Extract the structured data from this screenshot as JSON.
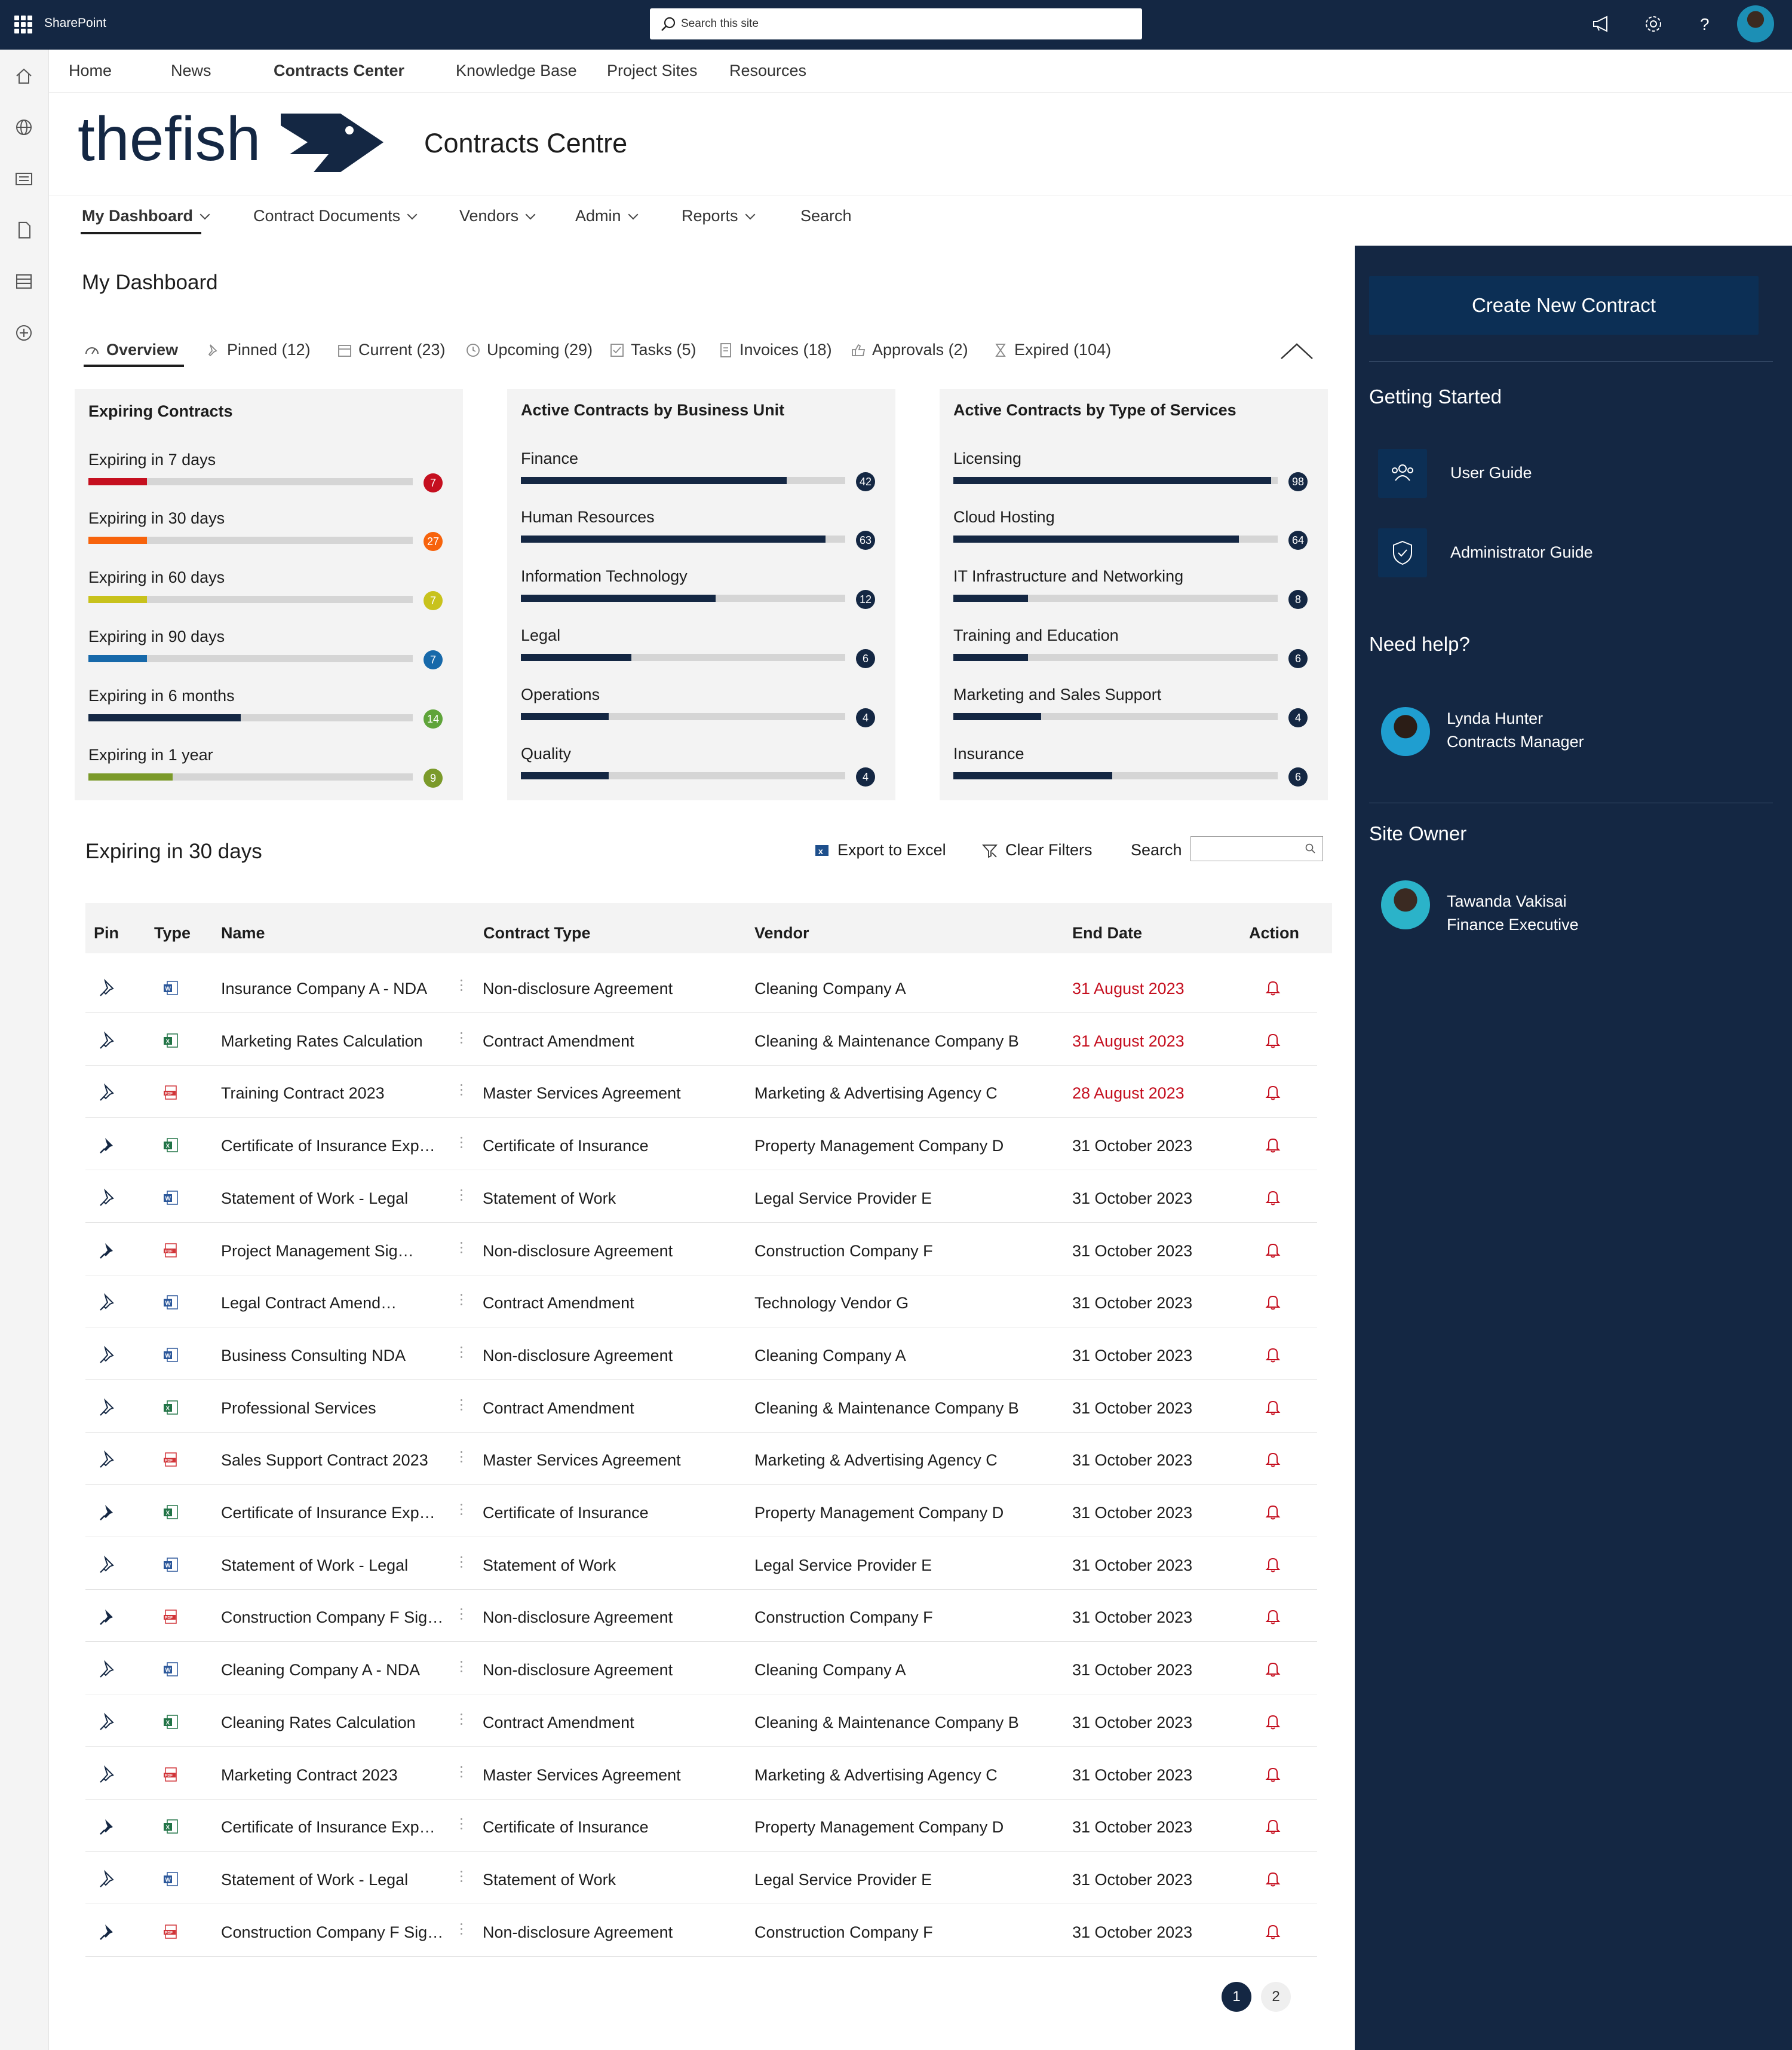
{
  "suite_bar": {
    "app_label": "SharePoint",
    "search_placeholder": "Search this site"
  },
  "site_nav": [
    "Home",
    "News",
    "Contracts Center",
    "Knowledge Base",
    "Project Sites",
    "Resources"
  ],
  "brand": {
    "logo_text": "thefish",
    "site_title": "Contracts Centre"
  },
  "sub_nav": [
    "My Dashboard",
    "Contract Documents",
    "Vendors",
    "Admin",
    "Reports",
    "Search"
  ],
  "dashboard": {
    "title": "My Dashboard",
    "tabs": [
      "Overview",
      "Pinned (12)",
      "Current (23)",
      "Upcoming (29)",
      "Tasks (5)",
      "Invoices (18)",
      "Approvals (2)",
      "Expired (104)"
    ]
  },
  "cards": [
    {
      "title": "Expiring Contracts",
      "rows": [
        {
          "label": "Expiring in 7 days",
          "value": "7",
          "fill": 0.18,
          "color": "#c50f1f"
        },
        {
          "label": "Expiring in 30 days",
          "value": "27",
          "fill": 0.18,
          "color": "#f7630c"
        },
        {
          "label": "Expiring in 60 days",
          "value": "7",
          "fill": 0.18,
          "color": "#c8c21c"
        },
        {
          "label": "Expiring in 90 days",
          "value": "7",
          "fill": 0.18,
          "color": "#1769aa"
        },
        {
          "label": "Expiring in 6 months",
          "value": "14",
          "fill": 0.47,
          "color": "#142743",
          "badge_color": "#5fa43a"
        },
        {
          "label": "Expiring in 1 year",
          "value": "9",
          "fill": 0.26,
          "color": "#7b9a2a"
        }
      ],
      "badge_colors": [
        "#c50f1f",
        "#f7630c",
        "#c8c21c",
        "#1769aa",
        "#5fa43a",
        "#7b9a2a"
      ]
    },
    {
      "title": "Active Contracts by Business Unit",
      "rows": [
        {
          "label": "Finance",
          "value": "42",
          "fill": 0.82,
          "color": "#142743"
        },
        {
          "label": "Human Resources",
          "value": "63",
          "fill": 0.94,
          "color": "#142743"
        },
        {
          "label": "Information Technology",
          "value": "12",
          "fill": 0.6,
          "color": "#142743"
        },
        {
          "label": "Legal",
          "value": "6",
          "fill": 0.34,
          "color": "#142743"
        },
        {
          "label": "Operations",
          "value": "4",
          "fill": 0.27,
          "color": "#142743"
        },
        {
          "label": "Quality",
          "value": "4",
          "fill": 0.27,
          "color": "#142743"
        }
      ]
    },
    {
      "title": "Active Contracts by Type of Services",
      "rows": [
        {
          "label": "Licensing",
          "value": "98",
          "fill": 0.98,
          "color": "#142743"
        },
        {
          "label": "Cloud Hosting",
          "value": "64",
          "fill": 0.88,
          "color": "#142743"
        },
        {
          "label": "IT Infrastructure and Networking",
          "value": "8",
          "fill": 0.23,
          "color": "#142743"
        },
        {
          "label": "Training and Education",
          "value": "6",
          "fill": 0.23,
          "color": "#142743"
        },
        {
          "label": "Marketing and Sales Support",
          "value": "4",
          "fill": 0.27,
          "color": "#142743"
        },
        {
          "label": "Insurance",
          "value": "6",
          "fill": 0.49,
          "color": "#142743"
        }
      ]
    }
  ],
  "table": {
    "title": "Expiring in 30 days",
    "export_label": "Export to Excel",
    "clear_label": "Clear Filters",
    "search_label": "Search",
    "headers": [
      "Pin",
      "Type",
      "Name",
      "Contract Type",
      "Vendor",
      "End Date",
      "Action"
    ],
    "rows": [
      {
        "pinned": false,
        "type": "word",
        "name": "Insurance Company A - NDA",
        "contract_type": "Non-disclosure Agreement",
        "vendor": "Cleaning Company A",
        "end_date": "31 August 2023",
        "urgent": true
      },
      {
        "pinned": false,
        "type": "excel",
        "name": "Marketing Rates Calculation",
        "contract_type": "Contract Amendment",
        "vendor": "Cleaning & Maintenance Company B",
        "end_date": "31 August 2023",
        "urgent": true
      },
      {
        "pinned": false,
        "type": "pdf",
        "name": "Training Contract 2023",
        "contract_type": "Master Services Agreement",
        "vendor": "Marketing & Advertising Agency C",
        "end_date": "28 August 2023",
        "urgent": true
      },
      {
        "pinned": true,
        "type": "excel",
        "name": "Certificate of Insurance Exp…",
        "contract_type": "Certificate of Insurance",
        "vendor": "Property Management Company D",
        "end_date": "31 October 2023",
        "urgent": false
      },
      {
        "pinned": false,
        "type": "word",
        "name": "Statement of Work - Legal",
        "contract_type": "Statement of Work",
        "vendor": "Legal Service Provider E",
        "end_date": "31 October 2023",
        "urgent": false
      },
      {
        "pinned": true,
        "type": "pdf",
        "name": "Project Management Sig…",
        "contract_type": "Non-disclosure Agreement",
        "vendor": "Construction Company F",
        "end_date": "31 October 2023",
        "urgent": false
      },
      {
        "pinned": false,
        "type": "word",
        "name": "Legal Contract Amend…",
        "contract_type": "Contract Amendment",
        "vendor": "Technology Vendor G",
        "end_date": "31 October 2023",
        "urgent": false
      },
      {
        "pinned": false,
        "type": "word",
        "name": "Business Consulting NDA",
        "contract_type": "Non-disclosure Agreement",
        "vendor": "Cleaning Company A",
        "end_date": "31 October 2023",
        "urgent": false
      },
      {
        "pinned": false,
        "type": "excel",
        "name": "Professional Services",
        "contract_type": "Contract Amendment",
        "vendor": "Cleaning & Maintenance Company B",
        "end_date": "31 October 2023",
        "urgent": false
      },
      {
        "pinned": false,
        "type": "pdf",
        "name": "Sales Support Contract 2023",
        "contract_type": "Master Services Agreement",
        "vendor": "Marketing & Advertising Agency C",
        "end_date": "31 October 2023",
        "urgent": false
      },
      {
        "pinned": true,
        "type": "excel",
        "name": "Certificate of Insurance Exp…",
        "contract_type": "Certificate of Insurance",
        "vendor": "Property Management Company D",
        "end_date": "31 October 2023",
        "urgent": false
      },
      {
        "pinned": false,
        "type": "word",
        "name": "Statement of Work - Legal",
        "contract_type": "Statement of Work",
        "vendor": "Legal Service Provider E",
        "end_date": "31 October 2023",
        "urgent": false
      },
      {
        "pinned": true,
        "type": "pdf",
        "name": "Construction Company F Sig…",
        "contract_type": "Non-disclosure Agreement",
        "vendor": "Construction Company F",
        "end_date": "31 October 2023",
        "urgent": false
      },
      {
        "pinned": false,
        "type": "word",
        "name": "Cleaning Company A - NDA",
        "contract_type": "Non-disclosure Agreement",
        "vendor": "Cleaning Company A",
        "end_date": "31 October 2023",
        "urgent": false
      },
      {
        "pinned": false,
        "type": "excel",
        "name": "Cleaning Rates Calculation",
        "contract_type": "Contract Amendment",
        "vendor": "Cleaning & Maintenance Company B",
        "end_date": "31 October 2023",
        "urgent": false
      },
      {
        "pinned": false,
        "type": "pdf",
        "name": "Marketing Contract 2023",
        "contract_type": "Master Services Agreement",
        "vendor": "Marketing & Advertising Agency C",
        "end_date": "31 October 2023",
        "urgent": false
      },
      {
        "pinned": true,
        "type": "excel",
        "name": "Certificate of Insurance Exp…",
        "contract_type": "Certificate of Insurance",
        "vendor": "Property Management Company D",
        "end_date": "31 October 2023",
        "urgent": false
      },
      {
        "pinned": false,
        "type": "word",
        "name": "Statement of Work - Legal",
        "contract_type": "Statement of Work",
        "vendor": "Legal Service Provider E",
        "end_date": "31 October 2023",
        "urgent": false
      },
      {
        "pinned": true,
        "type": "pdf",
        "name": "Construction Company F Sig…",
        "contract_type": "Non-disclosure Agreement",
        "vendor": "Construction Company F",
        "end_date": "31 October 2023",
        "urgent": false
      }
    ],
    "pages": [
      "1",
      "2"
    ],
    "current_page": "1"
  },
  "right_panel": {
    "create_label": "Create New Contract",
    "getting_started": "Getting Started",
    "guides": [
      "User Guide",
      "Administrator Guide"
    ],
    "need_help": "Need help?",
    "help_person": {
      "name": "Lynda Hunter",
      "role": "Contracts Manager"
    },
    "site_owner": "Site Owner",
    "owner_person": {
      "name": "Tawanda Vakisai",
      "role": "Finance Executive"
    }
  },
  "colors": {
    "navy": "#142743",
    "button": "#0c2f55",
    "urgent": "#c50f1f"
  }
}
